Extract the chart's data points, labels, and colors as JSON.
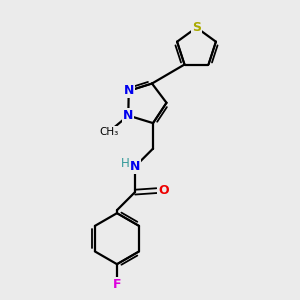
{
  "background_color": "#ebebeb",
  "atom_colors": {
    "C": "#000000",
    "N": "#0000ee",
    "O": "#ee0000",
    "S": "#aaaa00",
    "F": "#dd00dd",
    "H": "#339999"
  },
  "bond_color": "#000000",
  "figsize": [
    3.0,
    3.0
  ],
  "dpi": 100
}
